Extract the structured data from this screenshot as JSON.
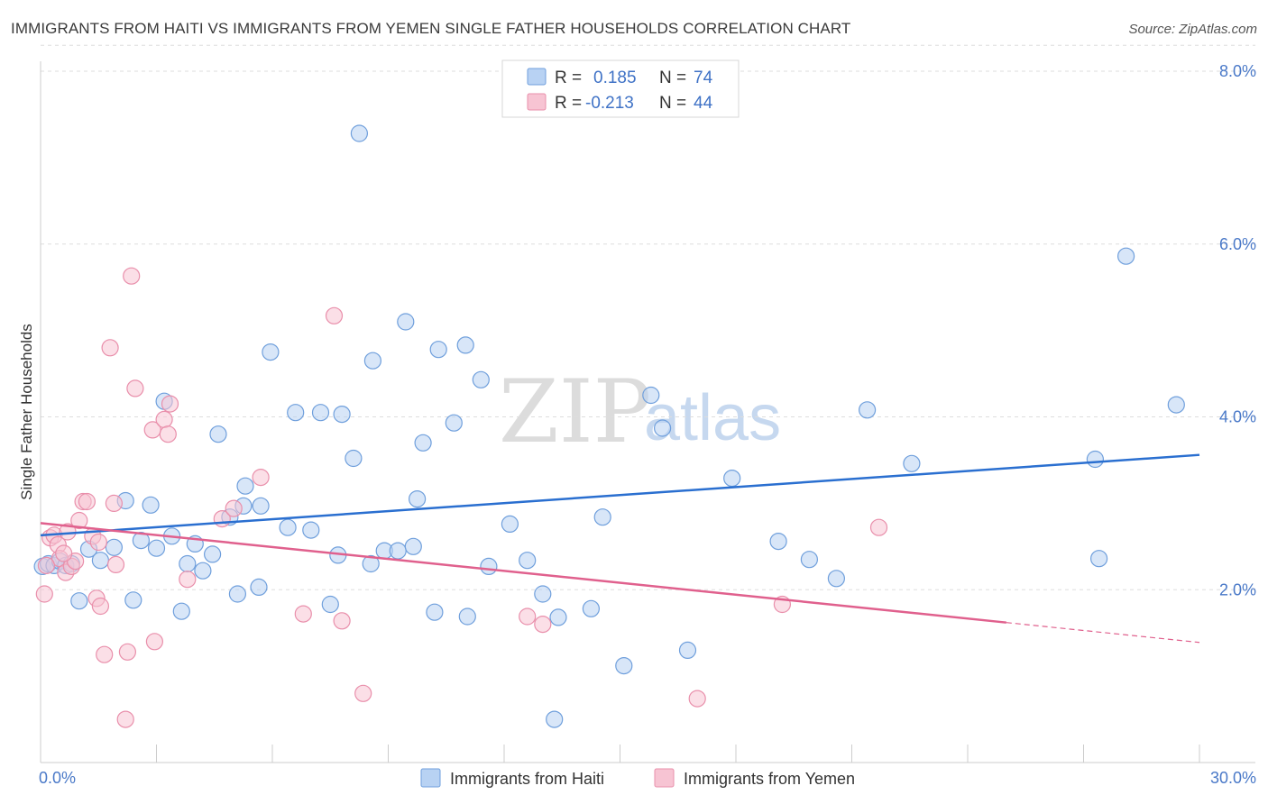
{
  "title": "IMMIGRANTS FROM HAITI VS IMMIGRANTS FROM YEMEN SINGLE FATHER HOUSEHOLDS CORRELATION CHART",
  "source": "Source: ZipAtlas.com",
  "watermark": {
    "zip": "ZIP",
    "atlas": "atlas"
  },
  "colors": {
    "haiti_fill": "#b8d2f3",
    "haiti_stroke": "#6f9fdc",
    "haiti_line": "#2a6fd0",
    "yemen_fill": "#f7c4d3",
    "yemen_stroke": "#e98fab",
    "yemen_line": "#e0608d",
    "axis_text": "#4a79c8",
    "grid": "#dddddd"
  },
  "legend": {
    "r_label": "R =",
    "n_label": "N =",
    "rows": [
      {
        "r": "0.185",
        "n": "74"
      },
      {
        "r": "-0.213",
        "n": "44"
      }
    ]
  },
  "chart_data": {
    "type": "scatter",
    "title": "IMMIGRANTS FROM HAITI VS IMMIGRANTS FROM YEMEN SINGLE FATHER HOUSEHOLDS CORRELATION CHART",
    "xlabel": "",
    "ylabel": "Single Father Households",
    "xlim": [
      0,
      30
    ],
    "ylim": [
      0,
      8.3
    ],
    "x_tick_labels": [
      "0.0%",
      "30.0%"
    ],
    "y_ticks": [
      2,
      4,
      6,
      8
    ],
    "y_tick_labels": [
      "2.0%",
      "4.0%",
      "6.0%",
      "8.0%"
    ],
    "grid": "horizontal dashed",
    "legend_position": "top-center",
    "series": [
      {
        "name": "Immigrants from Haiti",
        "r": 0.185,
        "n": 74,
        "trend": {
          "x": [
            0,
            30
          ],
          "y": [
            2.63,
            3.56
          ]
        },
        "points": [
          [
            0.05,
            2.27
          ],
          [
            0.2,
            2.3
          ],
          [
            0.35,
            2.28
          ],
          [
            0.5,
            2.33
          ],
          [
            0.65,
            2.28
          ],
          [
            0.8,
            2.3
          ],
          [
            1.0,
            1.87
          ],
          [
            1.25,
            2.47
          ],
          [
            1.55,
            2.34
          ],
          [
            1.9,
            2.49
          ],
          [
            2.2,
            3.03
          ],
          [
            2.4,
            1.88
          ],
          [
            2.6,
            2.57
          ],
          [
            2.85,
            2.98
          ],
          [
            3.0,
            2.48
          ],
          [
            3.2,
            4.18
          ],
          [
            3.4,
            2.62
          ],
          [
            3.65,
            1.75
          ],
          [
            3.8,
            2.3
          ],
          [
            4.0,
            2.53
          ],
          [
            4.2,
            2.22
          ],
          [
            4.45,
            2.41
          ],
          [
            4.9,
            2.84
          ],
          [
            4.6,
            3.8
          ],
          [
            5.25,
            2.97
          ],
          [
            5.1,
            1.95
          ],
          [
            5.7,
            2.97
          ],
          [
            5.65,
            2.03
          ],
          [
            5.3,
            3.2
          ],
          [
            5.95,
            4.75
          ],
          [
            6.4,
            2.72
          ],
          [
            6.6,
            4.05
          ],
          [
            7.0,
            2.69
          ],
          [
            7.25,
            4.05
          ],
          [
            7.5,
            1.83
          ],
          [
            7.7,
            2.4
          ],
          [
            7.8,
            4.03
          ],
          [
            8.1,
            3.52
          ],
          [
            8.25,
            7.28
          ],
          [
            8.6,
            4.65
          ],
          [
            8.55,
            2.3
          ],
          [
            8.9,
            2.45
          ],
          [
            9.25,
            2.45
          ],
          [
            9.45,
            5.1
          ],
          [
            9.65,
            2.5
          ],
          [
            9.75,
            3.05
          ],
          [
            9.9,
            3.7
          ],
          [
            10.3,
            4.78
          ],
          [
            10.2,
            1.74
          ],
          [
            10.7,
            3.93
          ],
          [
            11.0,
            4.83
          ],
          [
            11.05,
            1.69
          ],
          [
            11.4,
            4.43
          ],
          [
            11.6,
            2.27
          ],
          [
            12.15,
            2.76
          ],
          [
            12.6,
            2.34
          ],
          [
            13.0,
            1.95
          ],
          [
            13.3,
            0.5
          ],
          [
            13.4,
            1.68
          ],
          [
            14.25,
            1.78
          ],
          [
            14.55,
            2.84
          ],
          [
            15.1,
            1.12
          ],
          [
            15.8,
            4.25
          ],
          [
            16.1,
            3.87
          ],
          [
            16.75,
            1.3
          ],
          [
            17.9,
            3.29
          ],
          [
            19.1,
            2.56
          ],
          [
            19.9,
            2.35
          ],
          [
            20.6,
            2.13
          ],
          [
            21.4,
            4.08
          ],
          [
            22.55,
            3.46
          ],
          [
            27.3,
            3.51
          ],
          [
            27.4,
            2.36
          ],
          [
            28.1,
            5.86
          ],
          [
            29.4,
            4.14
          ]
        ]
      },
      {
        "name": "Immigrants from Yemen",
        "r": -0.213,
        "n": 44,
        "trend": {
          "x": [
            0,
            25
          ],
          "y": [
            2.77,
            1.62
          ]
        },
        "trend_dashed": {
          "x": [
            25,
            30
          ],
          "y": [
            1.62,
            1.39
          ]
        },
        "points": [
          [
            0.1,
            1.95
          ],
          [
            0.25,
            2.6
          ],
          [
            0.35,
            2.63
          ],
          [
            0.45,
            2.52
          ],
          [
            0.5,
            2.36
          ],
          [
            0.65,
            2.2
          ],
          [
            0.7,
            2.67
          ],
          [
            0.8,
            2.27
          ],
          [
            0.9,
            2.33
          ],
          [
            1.0,
            2.8
          ],
          [
            1.1,
            3.02
          ],
          [
            1.2,
            3.02
          ],
          [
            1.35,
            2.62
          ],
          [
            1.45,
            1.9
          ],
          [
            1.55,
            1.81
          ],
          [
            1.5,
            2.55
          ],
          [
            1.65,
            1.25
          ],
          [
            1.8,
            4.8
          ],
          [
            1.95,
            2.29
          ],
          [
            1.9,
            3.0
          ],
          [
            2.2,
            0.5
          ],
          [
            2.35,
            5.63
          ],
          [
            2.25,
            1.28
          ],
          [
            2.45,
            4.33
          ],
          [
            2.9,
            3.85
          ],
          [
            2.95,
            1.4
          ],
          [
            3.2,
            3.97
          ],
          [
            3.3,
            3.8
          ],
          [
            3.35,
            4.15
          ],
          [
            3.8,
            2.12
          ],
          [
            4.7,
            2.82
          ],
          [
            5.0,
            2.94
          ],
          [
            5.7,
            3.3
          ],
          [
            6.8,
            1.72
          ],
          [
            7.6,
            5.17
          ],
          [
            7.8,
            1.64
          ],
          [
            8.35,
            0.8
          ],
          [
            12.6,
            1.69
          ],
          [
            13.0,
            1.6
          ],
          [
            17.0,
            0.74
          ],
          [
            19.2,
            1.83
          ],
          [
            21.7,
            2.72
          ],
          [
            0.15,
            2.28
          ],
          [
            0.6,
            2.42
          ]
        ]
      }
    ]
  }
}
